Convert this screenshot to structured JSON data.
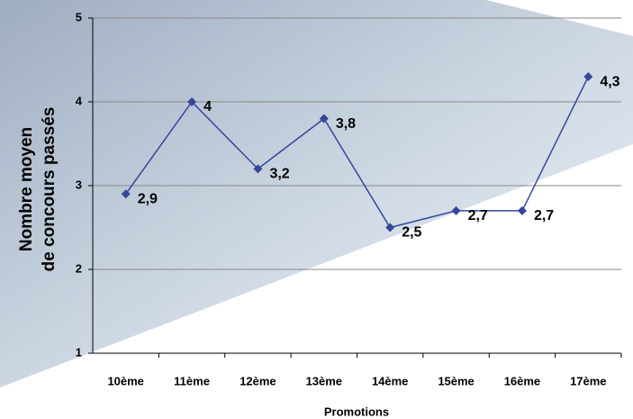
{
  "chart_data": {
    "type": "line",
    "categories": [
      "10ème",
      "11ème",
      "12ème",
      "13ème",
      "14ème",
      "15ème",
      "16ème",
      "17ème"
    ],
    "series": [
      {
        "color": "#34479a",
        "values": [
          2.9,
          4,
          3.2,
          3.8,
          2.5,
          2.7,
          2.7,
          4.3
        ],
        "value_labels": [
          "2,9",
          "4",
          "3,2",
          "3,8",
          "2,5",
          "2,7",
          "2,7",
          "4,3"
        ]
      }
    ],
    "ylim": [
      1,
      5
    ],
    "yticks": [
      1,
      2,
      3,
      4,
      5
    ],
    "grid": true,
    "y_label": [
      "Nombre moyen",
      "de concours passés"
    ],
    "x_label": "Promotions"
  }
}
